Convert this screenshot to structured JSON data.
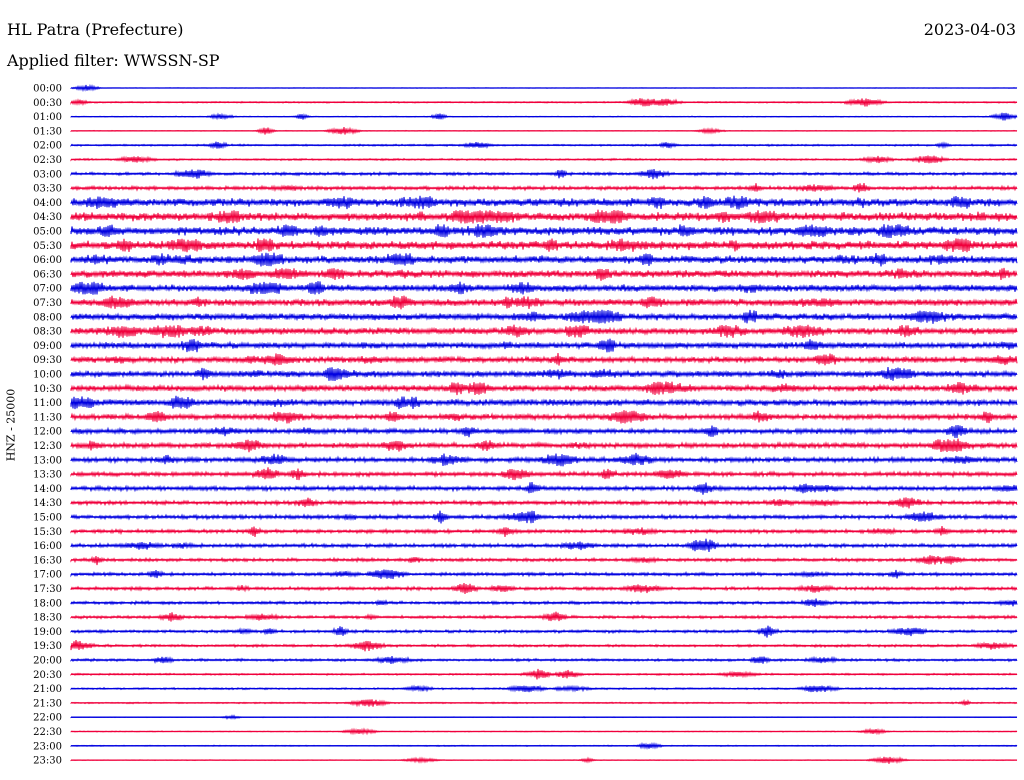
{
  "header": {
    "station": "HL Patra (Prefecture)",
    "date": "2023-04-03",
    "filter": "Applied filter: WWSSN-SP"
  },
  "chart_data": {
    "type": "line",
    "ylabel": "HNZ - 25000",
    "colors": {
      "even_row": "#0000e0",
      "odd_row": "#f0003c"
    },
    "rows": [
      {
        "time": "00:00",
        "level": 0.3
      },
      {
        "time": "00:30",
        "level": 0.8
      },
      {
        "time": "01:00",
        "level": 0.5
      },
      {
        "time": "01:30",
        "level": 0.4
      },
      {
        "time": "02:00",
        "level": 1.0
      },
      {
        "time": "02:30",
        "level": 1.0
      },
      {
        "time": "03:00",
        "level": 1.6
      },
      {
        "time": "03:30",
        "level": 2.0
      },
      {
        "time": "04:00",
        "level": 4.5
      },
      {
        "time": "04:30",
        "level": 4.8
      },
      {
        "time": "05:00",
        "level": 4.8
      },
      {
        "time": "05:30",
        "level": 4.8
      },
      {
        "time": "06:00",
        "level": 4.2
      },
      {
        "time": "06:30",
        "level": 4.2
      },
      {
        "time": "07:00",
        "level": 3.8
      },
      {
        "time": "07:30",
        "level": 3.8
      },
      {
        "time": "08:00",
        "level": 3.8
      },
      {
        "time": "08:30",
        "level": 3.8
      },
      {
        "time": "09:00",
        "level": 3.4
      },
      {
        "time": "09:30",
        "level": 3.2
      },
      {
        "time": "10:00",
        "level": 3.4
      },
      {
        "time": "10:30",
        "level": 3.4
      },
      {
        "time": "11:00",
        "level": 3.4
      },
      {
        "time": "11:30",
        "level": 3.0
      },
      {
        "time": "12:00",
        "level": 2.8
      },
      {
        "time": "12:30",
        "level": 2.8
      },
      {
        "time": "13:00",
        "level": 2.6
      },
      {
        "time": "13:30",
        "level": 2.4
      },
      {
        "time": "14:00",
        "level": 2.4
      },
      {
        "time": "14:30",
        "level": 2.2
      },
      {
        "time": "15:00",
        "level": 2.2
      },
      {
        "time": "15:30",
        "level": 2.0
      },
      {
        "time": "16:00",
        "level": 2.0
      },
      {
        "time": "16:30",
        "level": 1.8
      },
      {
        "time": "17:00",
        "level": 1.8
      },
      {
        "time": "17:30",
        "level": 1.8
      },
      {
        "time": "18:00",
        "level": 1.6
      },
      {
        "time": "18:30",
        "level": 1.6
      },
      {
        "time": "19:00",
        "level": 1.6
      },
      {
        "time": "19:30",
        "level": 1.4
      },
      {
        "time": "20:00",
        "level": 1.4
      },
      {
        "time": "20:30",
        "level": 1.0
      },
      {
        "time": "21:00",
        "level": 1.0
      },
      {
        "time": "21:30",
        "level": 0.8
      },
      {
        "time": "22:00",
        "level": 0.4
      },
      {
        "time": "22:30",
        "level": 0.5
      },
      {
        "time": "23:00",
        "level": 0.6
      },
      {
        "time": "23:30",
        "level": 0.4
      }
    ]
  }
}
